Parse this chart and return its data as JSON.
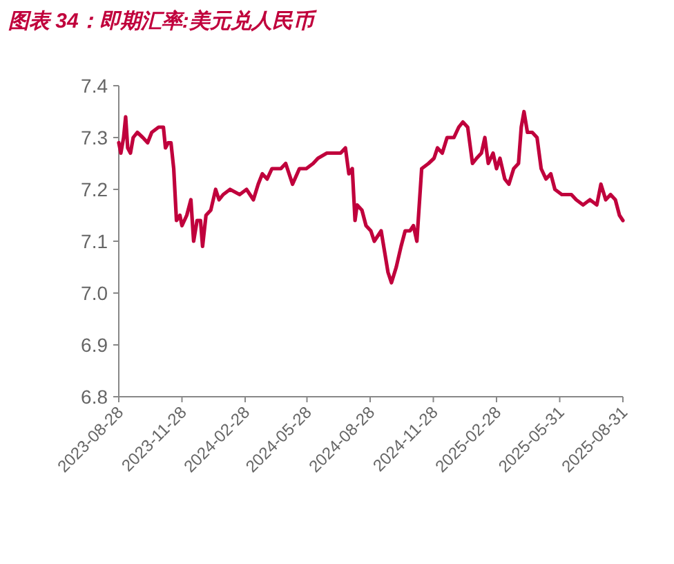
{
  "chart_data": {
    "type": "line",
    "title": "图表 34：即期汇率:美元兑人民币",
    "x": [
      "2023-08-28",
      "2023-08-31",
      "2023-09-04",
      "2023-09-07",
      "2023-09-10",
      "2023-09-14",
      "2023-09-18",
      "2023-09-24",
      "2023-10-02",
      "2023-10-09",
      "2023-10-15",
      "2023-10-25",
      "2023-11-01",
      "2023-11-04",
      "2023-11-08",
      "2023-11-12",
      "2023-11-16",
      "2023-11-20",
      "2023-11-25",
      "2023-11-28",
      "2023-12-05",
      "2023-12-11",
      "2023-12-15",
      "2023-12-20",
      "2023-12-25",
      "2023-12-28",
      "2024-01-02",
      "2024-01-09",
      "2024-01-16",
      "2024-01-21",
      "2024-01-27",
      "2024-02-06",
      "2024-02-20",
      "2024-03-01",
      "2024-03-11",
      "2024-03-18",
      "2024-03-24",
      "2024-03-31",
      "2024-04-07",
      "2024-04-20",
      "2024-04-27",
      "2024-05-07",
      "2024-05-17",
      "2024-05-27",
      "2024-06-06",
      "2024-06-13",
      "2024-06-26",
      "2024-07-03",
      "2024-07-16",
      "2024-07-23",
      "2024-07-28",
      "2024-08-02",
      "2024-08-06",
      "2024-08-09",
      "2024-08-16",
      "2024-08-22",
      "2024-08-29",
      "2024-09-03",
      "2024-09-08",
      "2024-09-13",
      "2024-09-18",
      "2024-09-23",
      "2024-09-28",
      "2024-10-05",
      "2024-10-12",
      "2024-10-18",
      "2024-10-25",
      "2024-10-30",
      "2024-11-04",
      "2024-11-11",
      "2024-11-21",
      "2024-11-29",
      "2024-12-04",
      "2024-12-11",
      "2024-12-18",
      "2024-12-28",
      "2025-01-04",
      "2025-01-10",
      "2025-01-17",
      "2025-01-24",
      "2025-01-30",
      "2025-02-06",
      "2025-02-11",
      "2025-02-16",
      "2025-02-23",
      "2025-02-28",
      "2025-03-05",
      "2025-03-12",
      "2025-03-18",
      "2025-03-25",
      "2025-04-01",
      "2025-04-05",
      "2025-04-09",
      "2025-04-14",
      "2025-04-21",
      "2025-04-28",
      "2025-05-04",
      "2025-05-11",
      "2025-05-18",
      "2025-05-24",
      "2025-06-03",
      "2025-06-17",
      "2025-06-24",
      "2025-07-04",
      "2025-07-14",
      "2025-07-24",
      "2025-07-30",
      "2025-08-06",
      "2025-08-13",
      "2025-08-20",
      "2025-08-26",
      "2025-08-31"
    ],
    "series": [
      {
        "color": "#c0003c",
        "values": [
          7.29,
          7.27,
          7.3,
          7.34,
          7.28,
          7.27,
          7.3,
          7.31,
          7.3,
          7.29,
          7.31,
          7.32,
          7.32,
          7.28,
          7.29,
          7.29,
          7.24,
          7.14,
          7.15,
          7.13,
          7.15,
          7.18,
          7.1,
          7.14,
          7.14,
          7.09,
          7.15,
          7.16,
          7.2,
          7.18,
          7.19,
          7.2,
          7.19,
          7.2,
          7.18,
          7.21,
          7.23,
          7.22,
          7.24,
          7.24,
          7.25,
          7.21,
          7.24,
          7.24,
          7.25,
          7.26,
          7.27,
          7.27,
          7.27,
          7.28,
          7.23,
          7.24,
          7.14,
          7.17,
          7.16,
          7.13,
          7.12,
          7.1,
          7.11,
          7.12,
          7.08,
          7.04,
          7.02,
          7.05,
          7.09,
          7.12,
          7.12,
          7.13,
          7.1,
          7.24,
          7.25,
          7.26,
          7.28,
          7.27,
          7.3,
          7.3,
          7.32,
          7.33,
          7.32,
          7.25,
          7.26,
          7.27,
          7.3,
          7.25,
          7.27,
          7.24,
          7.26,
          7.22,
          7.21,
          7.24,
          7.25,
          7.32,
          7.35,
          7.31,
          7.31,
          7.3,
          7.24,
          7.22,
          7.23,
          7.2,
          7.19,
          7.19,
          7.18,
          7.17,
          7.18,
          7.17,
          7.21,
          7.18,
          7.19,
          7.18,
          7.15,
          7.14
        ]
      }
    ],
    "xlim": [
      "2023-08-28",
      "2025-08-31"
    ],
    "xticks": [
      "2023-08-28",
      "2023-11-28",
      "2024-02-28",
      "2024-05-28",
      "2024-08-28",
      "2024-11-28",
      "2025-02-28",
      "2025-05-31",
      "2025-08-31"
    ],
    "ylim": [
      6.8,
      7.4
    ],
    "yticks": [
      6.8,
      6.9,
      {
        "value": 7,
        "label": "7.0"
      },
      7.1,
      7.2,
      7.3,
      7.4
    ],
    "grid": false,
    "marker": "none",
    "line_style": "solid"
  }
}
